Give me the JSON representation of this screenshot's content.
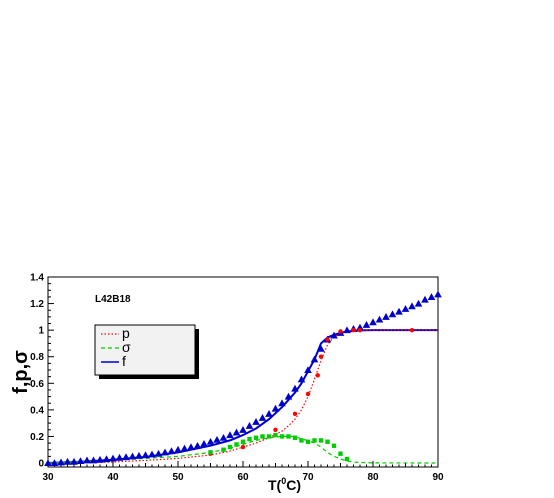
{
  "chart_data": {
    "type": "line",
    "annotation": "L42B18",
    "xlabel": "T(°C)",
    "xlabel_main": "T(",
    "xlabel_sup": "0",
    "xlabel_end": "C)",
    "ylabel": "f,p,σ",
    "xlim": [
      30,
      90
    ],
    "ylim": [
      -0.03,
      1.4
    ],
    "xticks": [
      30,
      40,
      50,
      60,
      70,
      80,
      90
    ],
    "xtick_labels": [
      "30",
      "40",
      "50",
      "60",
      "70",
      "80",
      "90"
    ],
    "yticks": [
      0,
      0.2,
      0.4,
      0.6,
      0.8,
      1,
      1.2,
      1.4
    ],
    "ytick_labels": [
      "0",
      "0.2",
      "0.4",
      "0.6",
      "0.8",
      "1",
      "1.2",
      "1.4"
    ],
    "grid": false,
    "legend": {
      "placement": "upper-left",
      "entries": [
        {
          "label": "p",
          "color": "#ff0000",
          "style": "dotted"
        },
        {
          "label": "σ",
          "color": "#00cc00",
          "style": "dashed"
        },
        {
          "label": "f",
          "color": "#0000cc",
          "style": "solid"
        }
      ]
    },
    "series": [
      {
        "name": "f",
        "kind": "line",
        "color": "#0000cc",
        "style": "solid",
        "x": [
          30,
          35,
          40,
          45,
          50,
          55,
          58,
          60,
          62,
          64,
          66,
          68,
          69,
          70,
          71,
          71.5,
          72,
          73,
          74,
          75,
          76,
          78,
          80,
          85,
          90
        ],
        "y": [
          0.0,
          0.01,
          0.025,
          0.045,
          0.08,
          0.13,
          0.17,
          0.21,
          0.26,
          0.33,
          0.42,
          0.53,
          0.6,
          0.69,
          0.78,
          0.84,
          0.9,
          0.945,
          0.965,
          0.98,
          0.99,
          0.998,
          1.0,
          1.0,
          1.0
        ]
      },
      {
        "name": "p",
        "kind": "line",
        "color": "#ff0000",
        "style": "dotted",
        "x": [
          30,
          35,
          40,
          45,
          50,
          55,
          58,
          60,
          62,
          64,
          66,
          67,
          68,
          69,
          70,
          71,
          72,
          73,
          74,
          75,
          76,
          78,
          80,
          90
        ],
        "y": [
          0.0,
          0.003,
          0.008,
          0.02,
          0.035,
          0.06,
          0.09,
          0.12,
          0.15,
          0.19,
          0.24,
          0.28,
          0.33,
          0.4,
          0.5,
          0.63,
          0.77,
          0.89,
          0.95,
          0.98,
          0.99,
          0.998,
          1.0,
          1.0
        ]
      },
      {
        "name": "sigma",
        "kind": "line",
        "color": "#00cc00",
        "style": "dashed",
        "x": [
          30,
          35,
          40,
          45,
          50,
          55,
          58,
          60,
          62,
          64,
          66,
          67,
          68,
          69,
          70,
          71,
          72,
          73,
          74,
          75,
          76,
          77,
          78,
          80,
          90
        ],
        "y": [
          0.0,
          0.01,
          0.02,
          0.035,
          0.05,
          0.08,
          0.11,
          0.14,
          0.17,
          0.19,
          0.2,
          0.2,
          0.2,
          0.18,
          0.17,
          0.15,
          0.12,
          0.08,
          0.05,
          0.03,
          0.015,
          0.008,
          0.004,
          0.001,
          0.0
        ]
      },
      {
        "name": "f data",
        "kind": "markers",
        "marker": "triangle",
        "color": "#0000cc",
        "x": [
          30,
          31,
          32,
          33,
          34,
          35,
          36,
          37,
          38,
          39,
          40,
          41,
          42,
          43,
          44,
          45,
          46,
          47,
          48,
          49,
          50,
          51,
          52,
          53,
          54,
          55,
          56,
          57,
          58,
          59,
          60,
          61,
          62,
          63,
          64,
          65,
          66,
          67,
          68,
          69,
          70,
          71,
          72,
          73,
          74,
          75,
          76,
          77,
          78,
          79,
          80,
          81,
          82,
          83,
          84,
          85,
          86,
          87,
          88,
          89,
          90
        ],
        "y": [
          0.0,
          0.0,
          0.005,
          0.01,
          0.01,
          0.015,
          0.02,
          0.02,
          0.025,
          0.03,
          0.035,
          0.04,
          0.045,
          0.05,
          0.055,
          0.06,
          0.065,
          0.07,
          0.08,
          0.09,
          0.1,
          0.11,
          0.12,
          0.13,
          0.145,
          0.16,
          0.175,
          0.19,
          0.21,
          0.23,
          0.25,
          0.28,
          0.31,
          0.34,
          0.37,
          0.41,
          0.45,
          0.5,
          0.56,
          0.63,
          0.7,
          0.78,
          0.86,
          0.93,
          0.96,
          0.98,
          1.0,
          1.01,
          1.02,
          1.04,
          1.06,
          1.08,
          1.1,
          1.12,
          1.14,
          1.16,
          1.18,
          1.2,
          1.23,
          1.25,
          1.27
        ]
      },
      {
        "name": "p data",
        "kind": "markers",
        "marker": "circle",
        "color": "#ff0000",
        "x": [
          55,
          60,
          65,
          68,
          70,
          71.5,
          72,
          73,
          75,
          77,
          78,
          86
        ],
        "y": [
          0.07,
          0.12,
          0.25,
          0.37,
          0.52,
          0.66,
          0.8,
          0.93,
          0.99,
          1.0,
          1.0,
          1.0
        ]
      },
      {
        "name": "sigma data",
        "kind": "markers",
        "marker": "square",
        "color": "#00cc00",
        "x": [
          55,
          57,
          58,
          59,
          60,
          61,
          62,
          63,
          64,
          65,
          66,
          67,
          68,
          69,
          70,
          71,
          72,
          73,
          74,
          75,
          76
        ],
        "y": [
          0.08,
          0.1,
          0.12,
          0.14,
          0.16,
          0.18,
          0.19,
          0.2,
          0.2,
          0.21,
          0.2,
          0.2,
          0.19,
          0.17,
          0.16,
          0.17,
          0.17,
          0.16,
          0.13,
          0.07,
          0.03
        ]
      }
    ]
  }
}
